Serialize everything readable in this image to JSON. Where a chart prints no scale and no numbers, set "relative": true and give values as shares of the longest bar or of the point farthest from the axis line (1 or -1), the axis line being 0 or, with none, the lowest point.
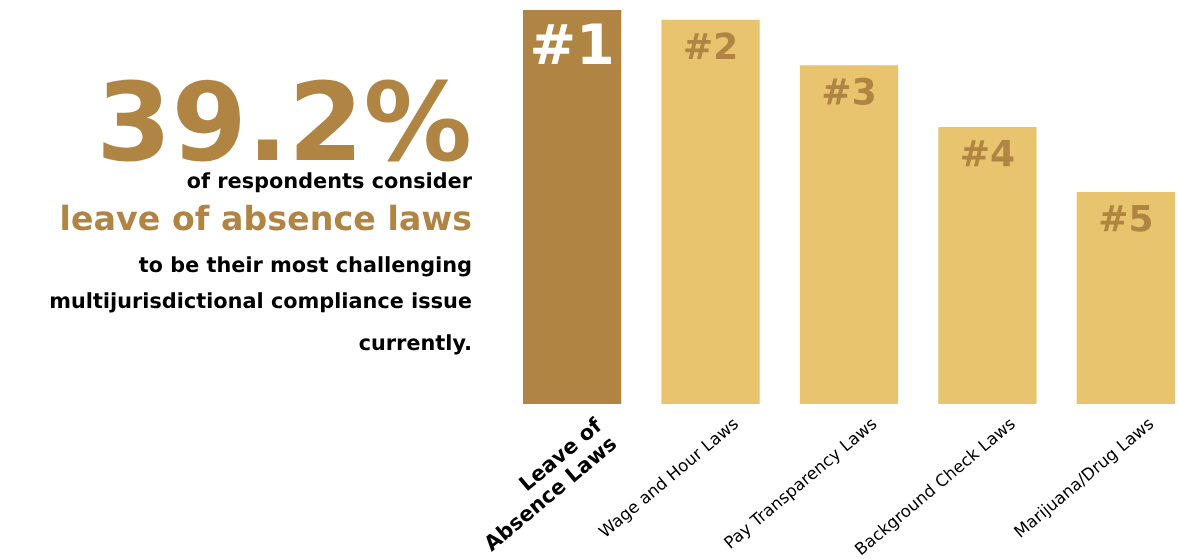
{
  "chart_data": {
    "type": "bar",
    "relative": true,
    "categories": [
      "Leave of\nAbsence Laws",
      "Wage and Hour Laws",
      "Pay Transparency Laws",
      "Background Check Laws",
      "Marijuana/Drug Laws"
    ],
    "values": [
      1,
      0.975,
      0.86,
      0.703,
      0.538
    ],
    "colors": [
      "#b08442",
      "#e8c46f",
      "#e8c46f",
      "#e8c46f",
      "#e8c46f"
    ],
    "annotations": [
      "39.2%",
      "of respondents consider",
      "leave of absence laws",
      "to be their most challenging",
      "multijurisdictional compliance issue",
      "currently.",
      {
        "text": "#1",
        "x": "Leave of\nAbsence Laws",
        "y": 1
      },
      {
        "text": "#2",
        "x": "Wage and Hour Laws",
        "y": 0.975
      },
      {
        "text": "#3",
        "x": "Pay Transparency Laws",
        "y": 0.86
      },
      {
        "text": "#4",
        "x": "Background Check Laws",
        "y": 0.703
      },
      {
        "text": "#5",
        "x": "Marijuana/Drug Laws",
        "y": 0.538
      }
    ],
    "legend": false
  }
}
